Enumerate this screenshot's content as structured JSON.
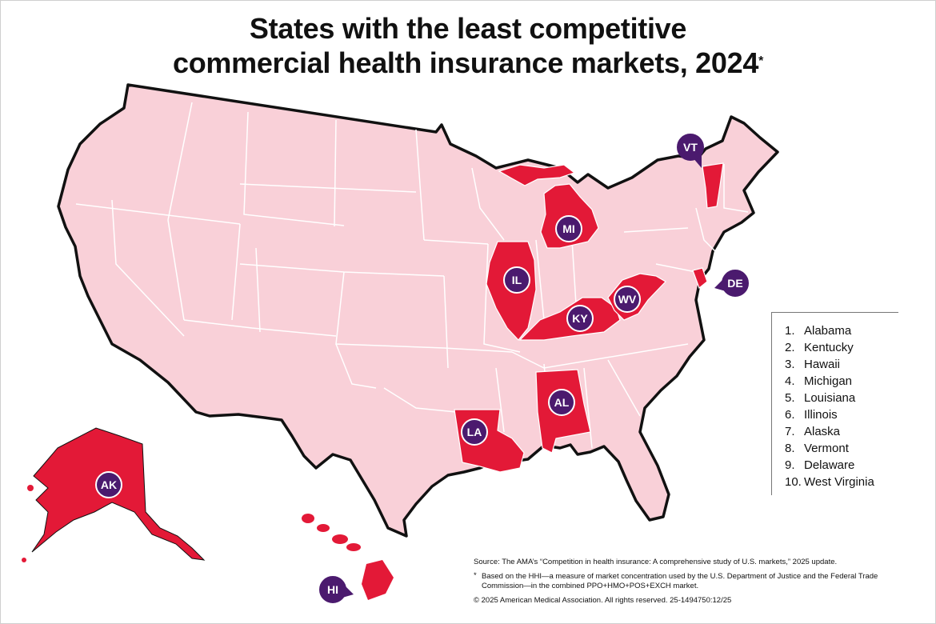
{
  "title": {
    "line1": "States with the least competitive",
    "line2": "commercial health insurance markets, 2024",
    "marker": "*"
  },
  "colors": {
    "background": "#ffffff",
    "state_fill": "#f9d0d8",
    "highlight_fill": "#e31937",
    "state_border": "#ffffff",
    "nation_outline": "#111111",
    "badge_fill": "#4b1a6e",
    "badge_text": "#ffffff"
  },
  "legend": {
    "items": [
      {
        "rank": "1.",
        "state": "Alabama"
      },
      {
        "rank": "2.",
        "state": "Kentucky"
      },
      {
        "rank": "3.",
        "state": "Hawaii"
      },
      {
        "rank": "4.",
        "state": "Michigan"
      },
      {
        "rank": "5.",
        "state": "Louisiana"
      },
      {
        "rank": "6.",
        "state": "Illinois"
      },
      {
        "rank": "7.",
        "state": "Alaska"
      },
      {
        "rank": "8.",
        "state": "Vermont"
      },
      {
        "rank": "9.",
        "state": "Delaware"
      },
      {
        "rank": "10.",
        "state": "West Virginia"
      }
    ]
  },
  "state_badges": [
    {
      "abbr": "AK",
      "pointer": "none"
    },
    {
      "abbr": "HI",
      "pointer": "right"
    },
    {
      "abbr": "IL",
      "pointer": "none"
    },
    {
      "abbr": "MI",
      "pointer": "none"
    },
    {
      "abbr": "KY",
      "pointer": "none"
    },
    {
      "abbr": "WV",
      "pointer": "none"
    },
    {
      "abbr": "AL",
      "pointer": "none"
    },
    {
      "abbr": "LA",
      "pointer": "none"
    },
    {
      "abbr": "VT",
      "pointer": "down"
    },
    {
      "abbr": "DE",
      "pointer": "left"
    }
  ],
  "notes": {
    "source": "Source: The AMA’s “Competition in health insurance: A comprehensive study of U.S. markets,” 2025 update.",
    "footnote_marker": "*",
    "footnote": "Based on the HHI—a measure of market concentration used by the U.S. Department of Justice and the Federal Trade Commission—in the combined PPO+HMO+POS+EXCH market.",
    "copyright": "© 2025 American Medical Association. All rights reserved. 25-1494750:12/25"
  }
}
